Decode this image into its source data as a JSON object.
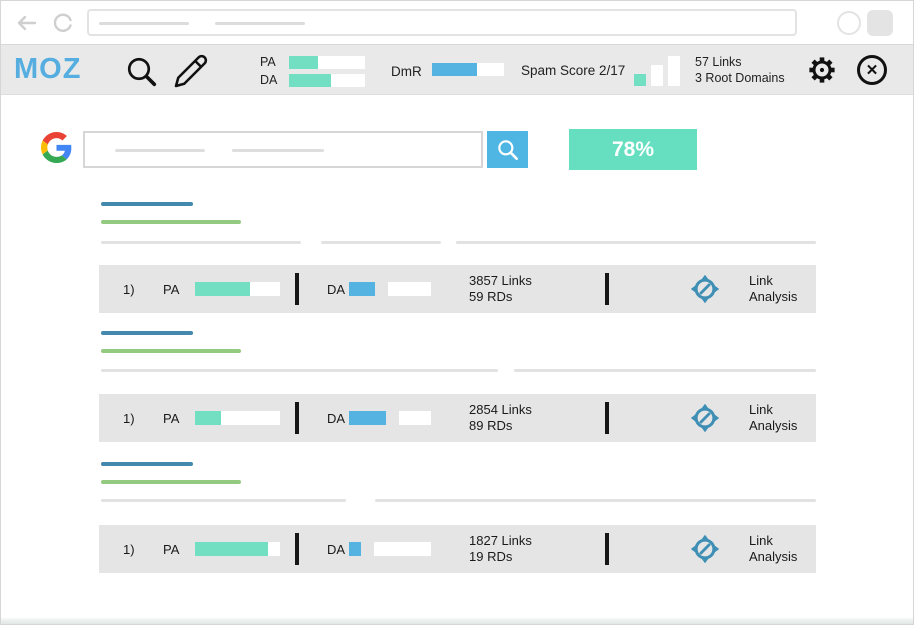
{
  "toolbar": {
    "logo": "MOZ",
    "pa": {
      "label": "PA",
      "fill_pct": 38
    },
    "da": {
      "label": "DA",
      "fill_pct": 55
    },
    "dmr": {
      "label": "DmR",
      "fill_pct": 62
    },
    "spam_score": "Spam Score 2/17",
    "links_summary": {
      "line1": "57 Links",
      "line2": "3 Root Domains"
    },
    "close_glyph": "✕"
  },
  "search": {
    "score": "78%"
  },
  "results": [
    {
      "rank": "1)",
      "pa_label": "PA",
      "pa_fill_pct": 65,
      "da_label": "DA",
      "da_fill_pct": 32,
      "links": "3857 Links",
      "rds": "59 RDs",
      "action": {
        "line1": "Link",
        "line2": "Analysis"
      }
    },
    {
      "rank": "1)",
      "pa_label": "PA",
      "pa_fill_pct": 30,
      "da_label": "DA",
      "da_fill_pct": 45,
      "links": "2854 Links",
      "rds": "89 RDs",
      "action": {
        "line1": "Link",
        "line2": "Analysis"
      }
    },
    {
      "rank": "1)",
      "pa_label": "PA",
      "pa_fill_pct": 86,
      "da_label": "DA",
      "da_fill_pct": 15,
      "links": "1827 Links",
      "rds": "19 RDs",
      "action": {
        "line1": "Link",
        "line2": "Analysis"
      }
    }
  ],
  "colors": {
    "teal": "#72dfc3",
    "blue": "#54b3e0",
    "moz_blue": "#55ade0",
    "score_teal": "#65dfc0",
    "title_blue": "#4289ad",
    "url_green": "#93ca80"
  }
}
